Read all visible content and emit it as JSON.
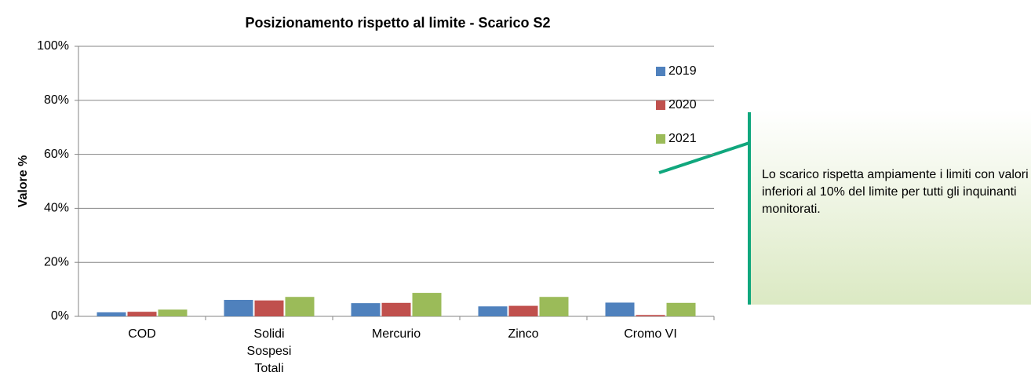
{
  "chart_data": {
    "type": "bar",
    "title": "Posizionamento rispetto al limite - Scarico S2",
    "y_label": "Valore %",
    "categories": [
      "COD",
      "Solidi Sospesi Totali",
      "Mercurio",
      "Zinco",
      "Cromo VI"
    ],
    "series": [
      {
        "name": "2019",
        "color": "#4f81bd",
        "values": [
          1.5,
          6.1,
          4.9,
          3.7,
          5.1
        ]
      },
      {
        "name": "2020",
        "color": "#c0504d",
        "values": [
          1.7,
          5.9,
          5.0,
          3.9,
          0.5
        ]
      },
      {
        "name": "2021",
        "color": "#9bbb59",
        "values": [
          2.5,
          7.2,
          8.7,
          7.2,
          5.0
        ]
      }
    ],
    "ylim": [
      0,
      100
    ],
    "yticks": [
      {
        "value": 0,
        "label": "0%"
      },
      {
        "value": 20,
        "label": "20%"
      },
      {
        "value": 40,
        "label": "40%"
      },
      {
        "value": 60,
        "label": "60%"
      },
      {
        "value": 80,
        "label": "80%"
      },
      {
        "value": 100,
        "label": "100%"
      }
    ],
    "grid": true,
    "legend": "right",
    "annotation": "Lo scarico rispetta ampiamente i limiti con valori inferiori al 10% del limite per tutti gli inquinanti monitorati."
  }
}
